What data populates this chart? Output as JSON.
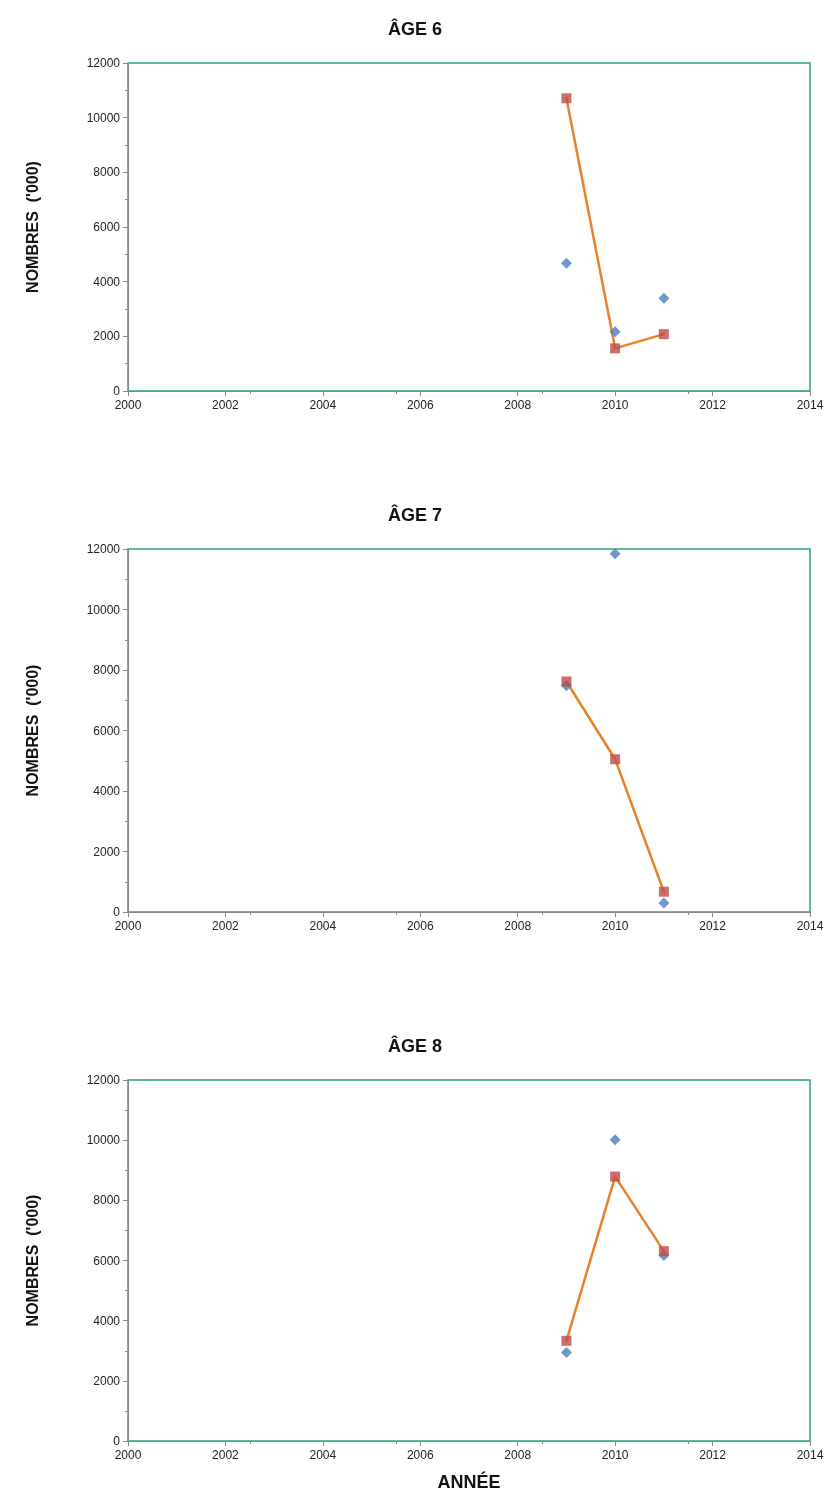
{
  "chart_data": [
    {
      "type": "scatter",
      "title": "ÂGE 6",
      "ylabel": "NOMBRES  ('000)",
      "x": [
        2009,
        2010,
        2011
      ],
      "series": [
        {
          "marker": "diamond",
          "color": "#4a7ebb",
          "values": [
            4670,
            2170,
            3390
          ]
        },
        {
          "type": "line",
          "marker": "none",
          "color": "#e8822a",
          "values": [
            10710,
            1560,
            2080
          ]
        },
        {
          "marker": "square",
          "color": "#be4b48",
          "values": [
            10710,
            1560,
            2080
          ]
        }
      ],
      "xlim": [
        2000,
        2014
      ],
      "xticks": [
        2000,
        2002,
        2004,
        2006,
        2008,
        2010,
        2012,
        2014
      ],
      "ylim": [
        0,
        12000
      ],
      "yticks": [
        0,
        2000,
        4000,
        6000,
        8000,
        10000,
        12000
      ],
      "grid": false
    },
    {
      "type": "scatter",
      "title": "ÂGE 7",
      "ylabel": "NOMBRES  ('000)",
      "x": [
        2009,
        2010,
        2011
      ],
      "series": [
        {
          "marker": "diamond",
          "color": "#4a7ebb",
          "values": [
            7480,
            11840,
            300
          ]
        },
        {
          "type": "line",
          "marker": "none",
          "color": "#e8822a",
          "values": [
            7620,
            5050,
            670
          ]
        },
        {
          "marker": "square",
          "color": "#be4b48",
          "values": [
            7620,
            5050,
            670
          ]
        }
      ],
      "xlim": [
        2000,
        2014
      ],
      "xticks": [
        2000,
        2002,
        2004,
        2006,
        2008,
        2010,
        2012,
        2014
      ],
      "ylim": [
        0,
        12000
      ],
      "yticks": [
        0,
        2000,
        4000,
        6000,
        8000,
        10000,
        12000
      ],
      "grid": false
    },
    {
      "type": "scatter",
      "title": "ÂGE 8",
      "ylabel": "NOMBRES  ('000)",
      "xlabel": "ANNÉE",
      "x": [
        2009,
        2010,
        2011
      ],
      "series": [
        {
          "marker": "diamond",
          "color": "#4a7ebb",
          "values": [
            2940,
            10010,
            6170
          ]
        },
        {
          "type": "line",
          "marker": "none",
          "color": "#e8822a",
          "values": [
            3330,
            8790,
            6310
          ]
        },
        {
          "marker": "square",
          "color": "#be4b48",
          "values": [
            3330,
            8790,
            6310
          ]
        }
      ],
      "xlim": [
        2000,
        2014
      ],
      "xticks": [
        2000,
        2002,
        2004,
        2006,
        2008,
        2010,
        2012,
        2014
      ],
      "ylim": [
        0,
        12000
      ],
      "yticks": [
        0,
        2000,
        4000,
        6000,
        8000,
        10000,
        12000
      ],
      "grid": false
    }
  ]
}
